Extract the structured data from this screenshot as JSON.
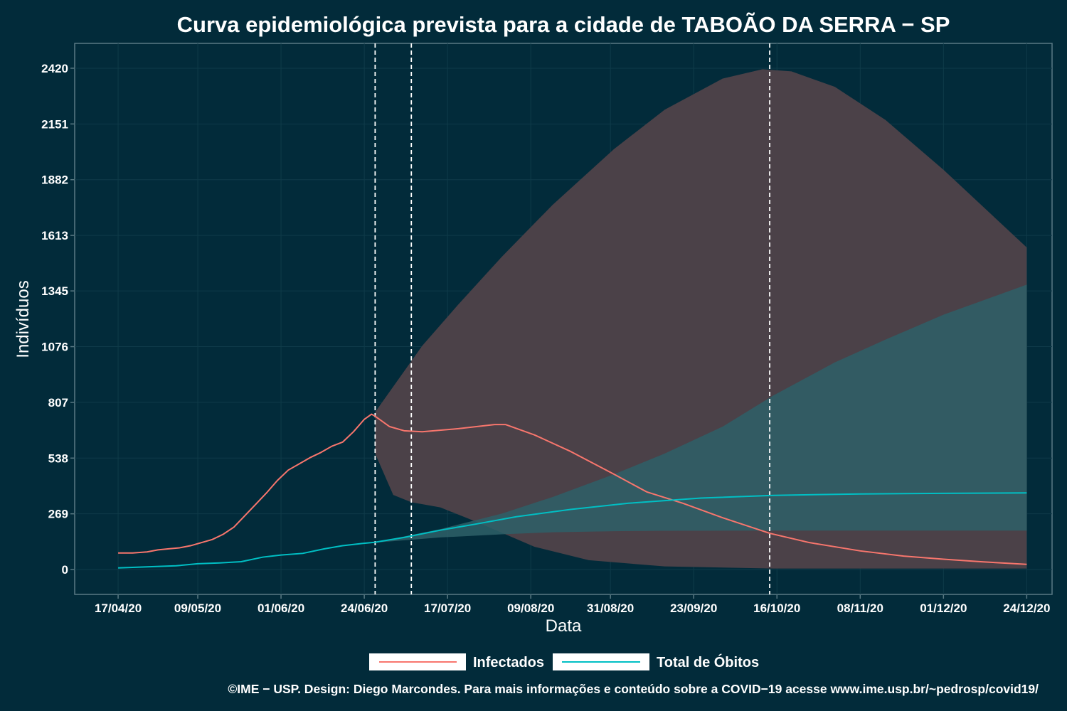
{
  "chart_data": {
    "type": "line",
    "title": "Curva epidemiológica prevista para a cidade de TABOÃO DA SERRA − SP",
    "xlabel": "Data",
    "ylabel": "Indivíduos",
    "x_ticks": [
      "17/04/20",
      "09/05/20",
      "01/06/20",
      "24/06/20",
      "17/07/20",
      "09/08/20",
      "31/08/20",
      "23/09/20",
      "16/10/20",
      "08/11/20",
      "01/12/20",
      "24/12/20"
    ],
    "y_ticks": [
      0,
      269,
      538,
      807,
      1076,
      1345,
      1613,
      1882,
      2151,
      2420
    ],
    "xlim": [
      "2020-04-05",
      "2020-12-31"
    ],
    "ylim": [
      -120,
      2540
    ],
    "vlines": [
      "2020-06-27",
      "2020-07-07",
      "2020-10-14"
    ],
    "grid": true,
    "legend_position": "bottom",
    "series": [
      {
        "name": "Infectados",
        "color": "#f8766d",
        "points": [
          [
            "2020-04-17",
            80
          ],
          [
            "2020-04-21",
            80
          ],
          [
            "2020-04-25",
            85
          ],
          [
            "2020-04-28",
            95
          ],
          [
            "2020-05-01",
            100
          ],
          [
            "2020-05-04",
            105
          ],
          [
            "2020-05-07",
            115
          ],
          [
            "2020-05-10",
            130
          ],
          [
            "2020-05-13",
            145
          ],
          [
            "2020-05-16",
            170
          ],
          [
            "2020-05-19",
            205
          ],
          [
            "2020-05-22",
            260
          ],
          [
            "2020-05-25",
            315
          ],
          [
            "2020-05-28",
            370
          ],
          [
            "2020-05-31",
            430
          ],
          [
            "2020-06-03",
            480
          ],
          [
            "2020-06-06",
            510
          ],
          [
            "2020-06-09",
            540
          ],
          [
            "2020-06-12",
            565
          ],
          [
            "2020-06-15",
            595
          ],
          [
            "2020-06-18",
            615
          ],
          [
            "2020-06-21",
            665
          ],
          [
            "2020-06-24",
            725
          ],
          [
            "2020-06-26",
            750
          ],
          [
            "2020-06-27",
            740
          ],
          [
            "2020-07-01",
            690
          ],
          [
            "2020-07-05",
            670
          ],
          [
            "2020-07-10",
            665
          ],
          [
            "2020-07-20",
            680
          ],
          [
            "2020-07-30",
            700
          ],
          [
            "2020-08-02",
            700
          ],
          [
            "2020-08-10",
            650
          ],
          [
            "2020-08-20",
            570
          ],
          [
            "2020-09-01",
            460
          ],
          [
            "2020-09-10",
            375
          ],
          [
            "2020-09-20",
            320
          ],
          [
            "2020-10-01",
            250
          ],
          [
            "2020-10-14",
            175
          ],
          [
            "2020-10-25",
            130
          ],
          [
            "2020-11-08",
            90
          ],
          [
            "2020-11-20",
            65
          ],
          [
            "2020-12-01",
            50
          ],
          [
            "2020-12-12",
            37
          ],
          [
            "2020-12-24",
            25
          ]
        ]
      },
      {
        "name": "Total de Óbitos",
        "color": "#00bfc4",
        "points": [
          [
            "2020-04-17",
            8
          ],
          [
            "2020-04-25",
            13
          ],
          [
            "2020-05-03",
            18
          ],
          [
            "2020-05-09",
            28
          ],
          [
            "2020-05-15",
            32
          ],
          [
            "2020-05-21",
            38
          ],
          [
            "2020-05-27",
            60
          ],
          [
            "2020-06-01",
            70
          ],
          [
            "2020-06-07",
            78
          ],
          [
            "2020-06-13",
            100
          ],
          [
            "2020-06-18",
            115
          ],
          [
            "2020-06-23",
            125
          ],
          [
            "2020-06-27",
            132
          ],
          [
            "2020-07-05",
            155
          ],
          [
            "2020-07-15",
            190
          ],
          [
            "2020-07-25",
            220
          ],
          [
            "2020-08-05",
            255
          ],
          [
            "2020-08-20",
            290
          ],
          [
            "2020-09-05",
            320
          ],
          [
            "2020-09-25",
            345
          ],
          [
            "2020-10-15",
            358
          ],
          [
            "2020-11-08",
            365
          ],
          [
            "2020-12-01",
            368
          ],
          [
            "2020-12-24",
            370
          ]
        ]
      }
    ],
    "bands": [
      {
        "name": "Infectados",
        "color": "#4b4148",
        "upper": [
          [
            "2020-06-27",
            760
          ],
          [
            "2020-07-10",
            1080
          ],
          [
            "2020-07-20",
            1280
          ],
          [
            "2020-08-01",
            1510
          ],
          [
            "2020-08-15",
            1760
          ],
          [
            "2020-09-01",
            2030
          ],
          [
            "2020-09-15",
            2220
          ],
          [
            "2020-10-01",
            2370
          ],
          [
            "2020-10-12",
            2415
          ],
          [
            "2020-10-20",
            2405
          ],
          [
            "2020-11-01",
            2330
          ],
          [
            "2020-11-15",
            2170
          ],
          [
            "2020-12-01",
            1930
          ],
          [
            "2020-12-24",
            1555
          ]
        ],
        "lower": [
          [
            "2020-06-27",
            560
          ],
          [
            "2020-07-02",
            360
          ],
          [
            "2020-07-07",
            325
          ],
          [
            "2020-07-15",
            300
          ],
          [
            "2020-07-25",
            230
          ],
          [
            "2020-08-10",
            110
          ],
          [
            "2020-08-25",
            45
          ],
          [
            "2020-09-15",
            15
          ],
          [
            "2020-10-15",
            5
          ],
          [
            "2020-12-24",
            5
          ]
        ]
      },
      {
        "name": "Total de Óbitos",
        "color": "#2e6068",
        "upper": [
          [
            "2020-06-27",
            132
          ],
          [
            "2020-07-15",
            195
          ],
          [
            "2020-08-01",
            270
          ],
          [
            "2020-08-15",
            350
          ],
          [
            "2020-09-01",
            460
          ],
          [
            "2020-09-15",
            560
          ],
          [
            "2020-10-01",
            690
          ],
          [
            "2020-10-15",
            840
          ],
          [
            "2020-11-01",
            1000
          ],
          [
            "2020-11-15",
            1110
          ],
          [
            "2020-12-01",
            1230
          ],
          [
            "2020-12-24",
            1375
          ]
        ],
        "lower": [
          [
            "2020-06-27",
            130
          ],
          [
            "2020-07-15",
            155
          ],
          [
            "2020-08-01",
            170
          ],
          [
            "2020-08-15",
            180
          ],
          [
            "2020-09-01",
            185
          ],
          [
            "2020-09-15",
            187
          ],
          [
            "2020-10-15",
            188
          ],
          [
            "2020-12-24",
            188
          ]
        ]
      }
    ]
  },
  "caption": "©IME − USP. Design: Diego Marcondes. Para mais informações e conteúdo sobre a COVID−19 acesse www.ime.usp.br/~pedrosp/covid19/"
}
